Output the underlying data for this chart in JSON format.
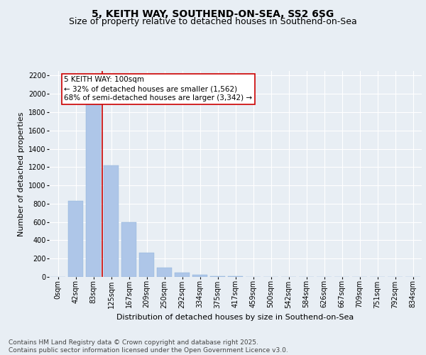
{
  "title": "5, KEITH WAY, SOUTHEND-ON-SEA, SS2 6SG",
  "subtitle": "Size of property relative to detached houses in Southend-on-Sea",
  "xlabel": "Distribution of detached houses by size in Southend-on-Sea",
  "ylabel": "Number of detached properties",
  "annotation_line1": "5 KEITH WAY: 100sqm",
  "annotation_line2": "← 32% of detached houses are smaller (1,562)",
  "annotation_line3": "68% of semi-detached houses are larger (3,342) →",
  "categories": [
    "0sqm",
    "42sqm",
    "83sqm",
    "125sqm",
    "167sqm",
    "209sqm",
    "250sqm",
    "292sqm",
    "334sqm",
    "375sqm",
    "417sqm",
    "459sqm",
    "500sqm",
    "542sqm",
    "584sqm",
    "626sqm",
    "667sqm",
    "709sqm",
    "751sqm",
    "792sqm",
    "834sqm"
  ],
  "bar_heights": [
    0,
    830,
    1950,
    1220,
    600,
    260,
    100,
    50,
    20,
    10,
    5,
    3,
    0,
    3,
    0,
    0,
    0,
    0,
    0,
    0,
    0
  ],
  "bar_color": "#aec6e8",
  "bar_edge_color": "#8ab0d8",
  "vline_color": "#cc0000",
  "vline_x": 2.5,
  "annotation_box_color": "#cc0000",
  "ylim": [
    0,
    2250
  ],
  "yticks": [
    0,
    200,
    400,
    600,
    800,
    1000,
    1200,
    1400,
    1600,
    1800,
    2000,
    2200
  ],
  "background_color": "#e8eef4",
  "footer_line1": "Contains HM Land Registry data © Crown copyright and database right 2025.",
  "footer_line2": "Contains public sector information licensed under the Open Government Licence v3.0.",
  "title_fontsize": 10,
  "subtitle_fontsize": 9,
  "axis_label_fontsize": 8,
  "tick_fontsize": 7,
  "annotation_fontsize": 7.5,
  "footer_fontsize": 6.5
}
